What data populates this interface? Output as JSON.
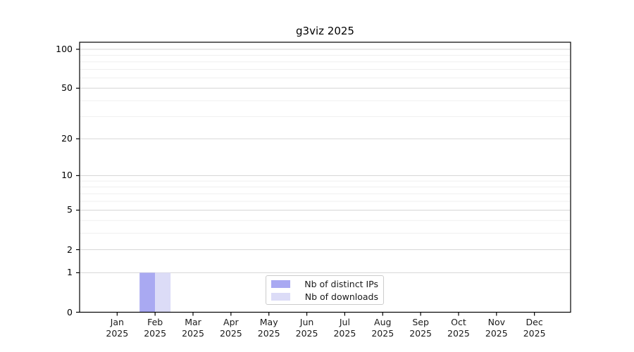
{
  "page": {
    "background": "#ffffff"
  },
  "chart_data": {
    "type": "bar",
    "title": "g3viz 2025",
    "categories": [
      {
        "month": "Jan",
        "year": "2025"
      },
      {
        "month": "Feb",
        "year": "2025"
      },
      {
        "month": "Mar",
        "year": "2025"
      },
      {
        "month": "Apr",
        "year": "2025"
      },
      {
        "month": "May",
        "year": "2025"
      },
      {
        "month": "Jun",
        "year": "2025"
      },
      {
        "month": "Jul",
        "year": "2025"
      },
      {
        "month": "Aug",
        "year": "2025"
      },
      {
        "month": "Sep",
        "year": "2025"
      },
      {
        "month": "Oct",
        "year": "2025"
      },
      {
        "month": "Nov",
        "year": "2025"
      },
      {
        "month": "Dec",
        "year": "2025"
      }
    ],
    "series": [
      {
        "name": "Nb of distinct IPs",
        "color": "#a9a9f2",
        "values": [
          0,
          1,
          0,
          0,
          0,
          0,
          0,
          0,
          0,
          0,
          0,
          0
        ]
      },
      {
        "name": "Nb of downloads",
        "color": "#dcdcf7",
        "values": [
          0,
          1,
          0,
          0,
          0,
          0,
          0,
          0,
          0,
          0,
          0,
          0
        ]
      }
    ],
    "y_axis": {
      "scale": "log1p",
      "ticks": [
        0,
        1,
        2,
        5,
        10,
        20,
        50,
        100
      ],
      "minor_gridlines": [
        3,
        4,
        6,
        7,
        8,
        9,
        30,
        40,
        60,
        70,
        80,
        90
      ],
      "top_labeled_value": 100
    },
    "grid": {
      "major_color": "#d6d6d6",
      "minor_color": "#efefef"
    },
    "axis_color": "#000000",
    "legend": {
      "position": "bottom-center-inside"
    }
  }
}
